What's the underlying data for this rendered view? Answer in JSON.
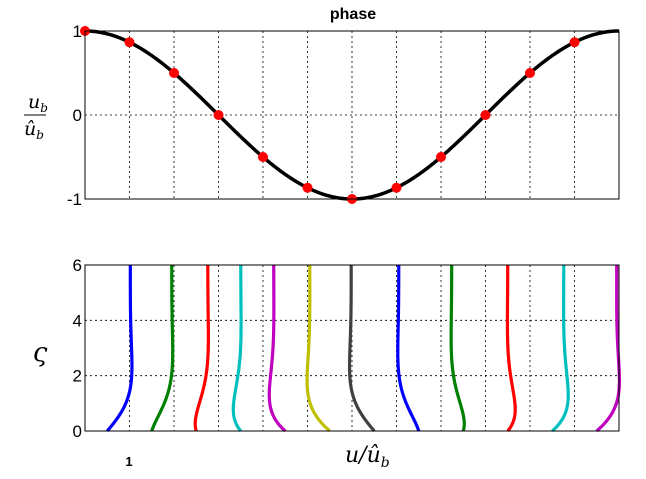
{
  "chart_data": [
    {
      "type": "line",
      "title": "phase",
      "ylabel_numerator": "u",
      "ylabel_numerator_sub": "b",
      "ylabel_denominator": "û",
      "ylabel_denominator_sub": "b",
      "xlim": [
        0,
        1
      ],
      "ylim": [
        -1,
        1
      ],
      "yticks": [
        {
          "value": 1,
          "label": "1"
        },
        {
          "value": 0,
          "label": "0"
        },
        {
          "value": -1,
          "label": "-1"
        }
      ],
      "xgrid": [
        0.0833,
        0.1667,
        0.25,
        0.3333,
        0.4167,
        0.5,
        0.5833,
        0.6667,
        0.75,
        0.8333,
        0.9167
      ],
      "grid": true,
      "curve": {
        "type": "cosine",
        "cycles": 1,
        "color": "#000000"
      },
      "markers": {
        "color": "#ff0000",
        "x": [
          0.0,
          0.0833,
          0.1667,
          0.25,
          0.3333,
          0.4167,
          0.5,
          0.5833,
          0.6667,
          0.75,
          0.8333,
          0.9167
        ],
        "y": [
          1.0,
          0.866,
          0.5,
          0.0,
          -0.5,
          -0.866,
          -1.0,
          -0.866,
          -0.5,
          0.0,
          0.5,
          0.866
        ]
      }
    },
    {
      "type": "line",
      "ylabel": "ς",
      "xlabel": "u/û",
      "xlabel_sub": "b",
      "scale_label": "1",
      "ylim": [
        0,
        6
      ],
      "yticks": [
        {
          "value": 6,
          "label": "6"
        },
        {
          "value": 4,
          "label": "4"
        },
        {
          "value": 2,
          "label": "2"
        },
        {
          "value": 0,
          "label": "0"
        }
      ],
      "grid": true,
      "series": [
        {
          "color": "#0000ff",
          "phase": 0.0
        },
        {
          "color": "#008000",
          "phase": 0.5236
        },
        {
          "color": "#ff0000",
          "phase": 1.0472
        },
        {
          "color": "#00bfbf",
          "phase": 1.5708
        },
        {
          "color": "#bf00bf",
          "phase": 2.0944
        },
        {
          "color": "#bfbf00",
          "phase": 2.618
        },
        {
          "color": "#404040",
          "phase": 3.1416
        },
        {
          "color": "#0000ff",
          "phase": 3.6652
        },
        {
          "color": "#008000",
          "phase": 4.1888
        },
        {
          "color": "#ff0000",
          "phase": 4.7124
        },
        {
          "color": "#00bfbf",
          "phase": 5.236
        },
        {
          "color": "#bf00bf",
          "phase": 5.7596
        }
      ]
    }
  ]
}
